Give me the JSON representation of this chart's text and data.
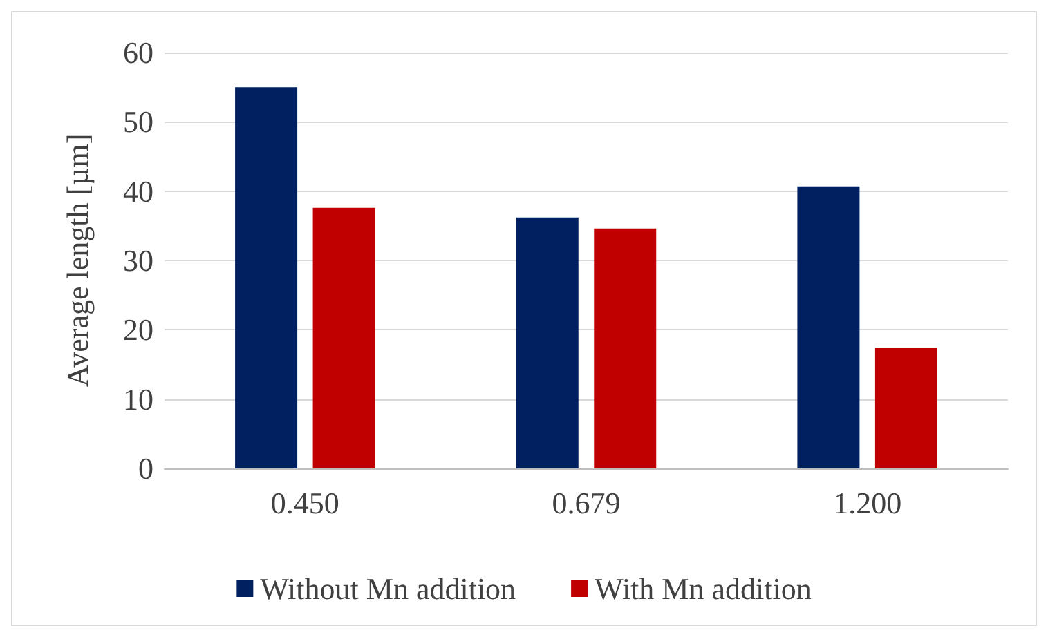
{
  "chart_data": {
    "type": "bar",
    "ylabel": "Average length [µm]",
    "categories": [
      "0.450",
      "0.679",
      "1.200"
    ],
    "series": [
      {
        "name": "Without Mn addition",
        "color": "#002060",
        "values": [
          55.0,
          36.2,
          40.7
        ]
      },
      {
        "name": "With Mn addition",
        "color": "#c00000",
        "values": [
          37.6,
          34.6,
          17.4
        ]
      }
    ],
    "ylim": [
      0,
      60
    ],
    "yticks": [
      0,
      10,
      20,
      30,
      40,
      50,
      60
    ],
    "grid": "y",
    "legend": "bottom"
  }
}
